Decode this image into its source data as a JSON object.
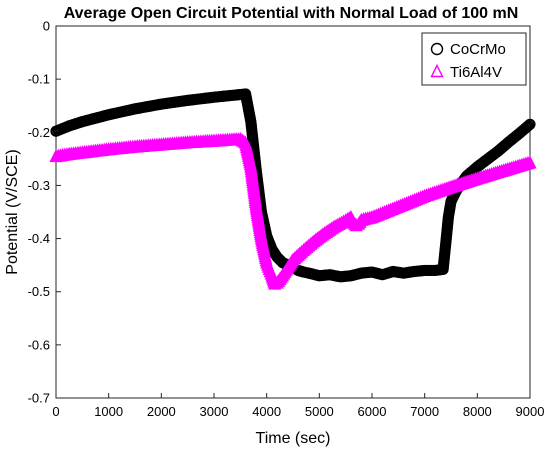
{
  "chart_data": {
    "type": "scatter",
    "title": "Average Open Circuit Potential with Normal Load of 100 mN",
    "xlabel": "Time (sec)",
    "ylabel": "Potential (V/SCE)",
    "xlim": [
      0,
      9000
    ],
    "ylim": [
      -0.7,
      0
    ],
    "xticks": [
      0,
      1000,
      2000,
      3000,
      4000,
      5000,
      6000,
      7000,
      8000,
      9000
    ],
    "yticks": [
      0,
      -0.1,
      -0.2,
      -0.3,
      -0.4,
      -0.5,
      -0.6,
      -0.7
    ],
    "xtick_labels": [
      "0",
      "1000",
      "2000",
      "3000",
      "4000",
      "5000",
      "6000",
      "7000",
      "8000",
      "9000"
    ],
    "ytick_labels": [
      "0",
      "-0.1",
      "-0.2",
      "-0.3",
      "-0.4",
      "-0.5",
      "-0.6",
      "-0.7"
    ],
    "grid": false,
    "legend_position": "top-right",
    "series": [
      {
        "name": "CoCrMo",
        "marker": "circle",
        "color": "#000000",
        "x": [
          0,
          250,
          500,
          1000,
          1500,
          2000,
          2500,
          3000,
          3400,
          3600,
          3700,
          3800,
          3900,
          4000,
          4100,
          4200,
          4300,
          4400,
          4500,
          4600,
          4700,
          4800,
          5000,
          5200,
          5400,
          5600,
          5800,
          6000,
          6200,
          6400,
          6600,
          6800,
          7000,
          7200,
          7350,
          7400,
          7450,
          7500,
          7600,
          7700,
          7800,
          8000,
          8200,
          8400,
          8600,
          8800,
          9000
        ],
        "y": [
          -0.198,
          -0.188,
          -0.18,
          -0.167,
          -0.156,
          -0.147,
          -0.14,
          -0.134,
          -0.13,
          -0.128,
          -0.18,
          -0.27,
          -0.35,
          -0.395,
          -0.42,
          -0.435,
          -0.445,
          -0.45,
          -0.455,
          -0.46,
          -0.463,
          -0.465,
          -0.47,
          -0.468,
          -0.472,
          -0.47,
          -0.465,
          -0.463,
          -0.468,
          -0.462,
          -0.465,
          -0.462,
          -0.46,
          -0.46,
          -0.458,
          -0.41,
          -0.36,
          -0.33,
          -0.31,
          -0.295,
          -0.282,
          -0.265,
          -0.25,
          -0.235,
          -0.218,
          -0.202,
          -0.185
        ]
      },
      {
        "name": "Ti6Al4V",
        "marker": "triangle",
        "color": "#ff00ff",
        "x": [
          0,
          250,
          500,
          1000,
          1500,
          2000,
          2500,
          3000,
          3300,
          3500,
          3600,
          3700,
          3800,
          3900,
          4000,
          4100,
          4150,
          4200,
          4300,
          4400,
          4500,
          4700,
          4900,
          5100,
          5300,
          5500,
          5600,
          5650,
          5700,
          5750,
          5800,
          6000,
          6200,
          6500,
          7000,
          7500,
          8000,
          8500,
          9000
        ],
        "y": [
          -0.245,
          -0.241,
          -0.238,
          -0.232,
          -0.227,
          -0.223,
          -0.219,
          -0.216,
          -0.214,
          -0.213,
          -0.22,
          -0.265,
          -0.34,
          -0.4,
          -0.445,
          -0.47,
          -0.485,
          -0.483,
          -0.47,
          -0.455,
          -0.44,
          -0.422,
          -0.405,
          -0.39,
          -0.377,
          -0.366,
          -0.36,
          -0.37,
          -0.375,
          -0.372,
          -0.365,
          -0.36,
          -0.352,
          -0.34,
          -0.32,
          -0.303,
          -0.287,
          -0.272,
          -0.257
        ]
      }
    ]
  }
}
